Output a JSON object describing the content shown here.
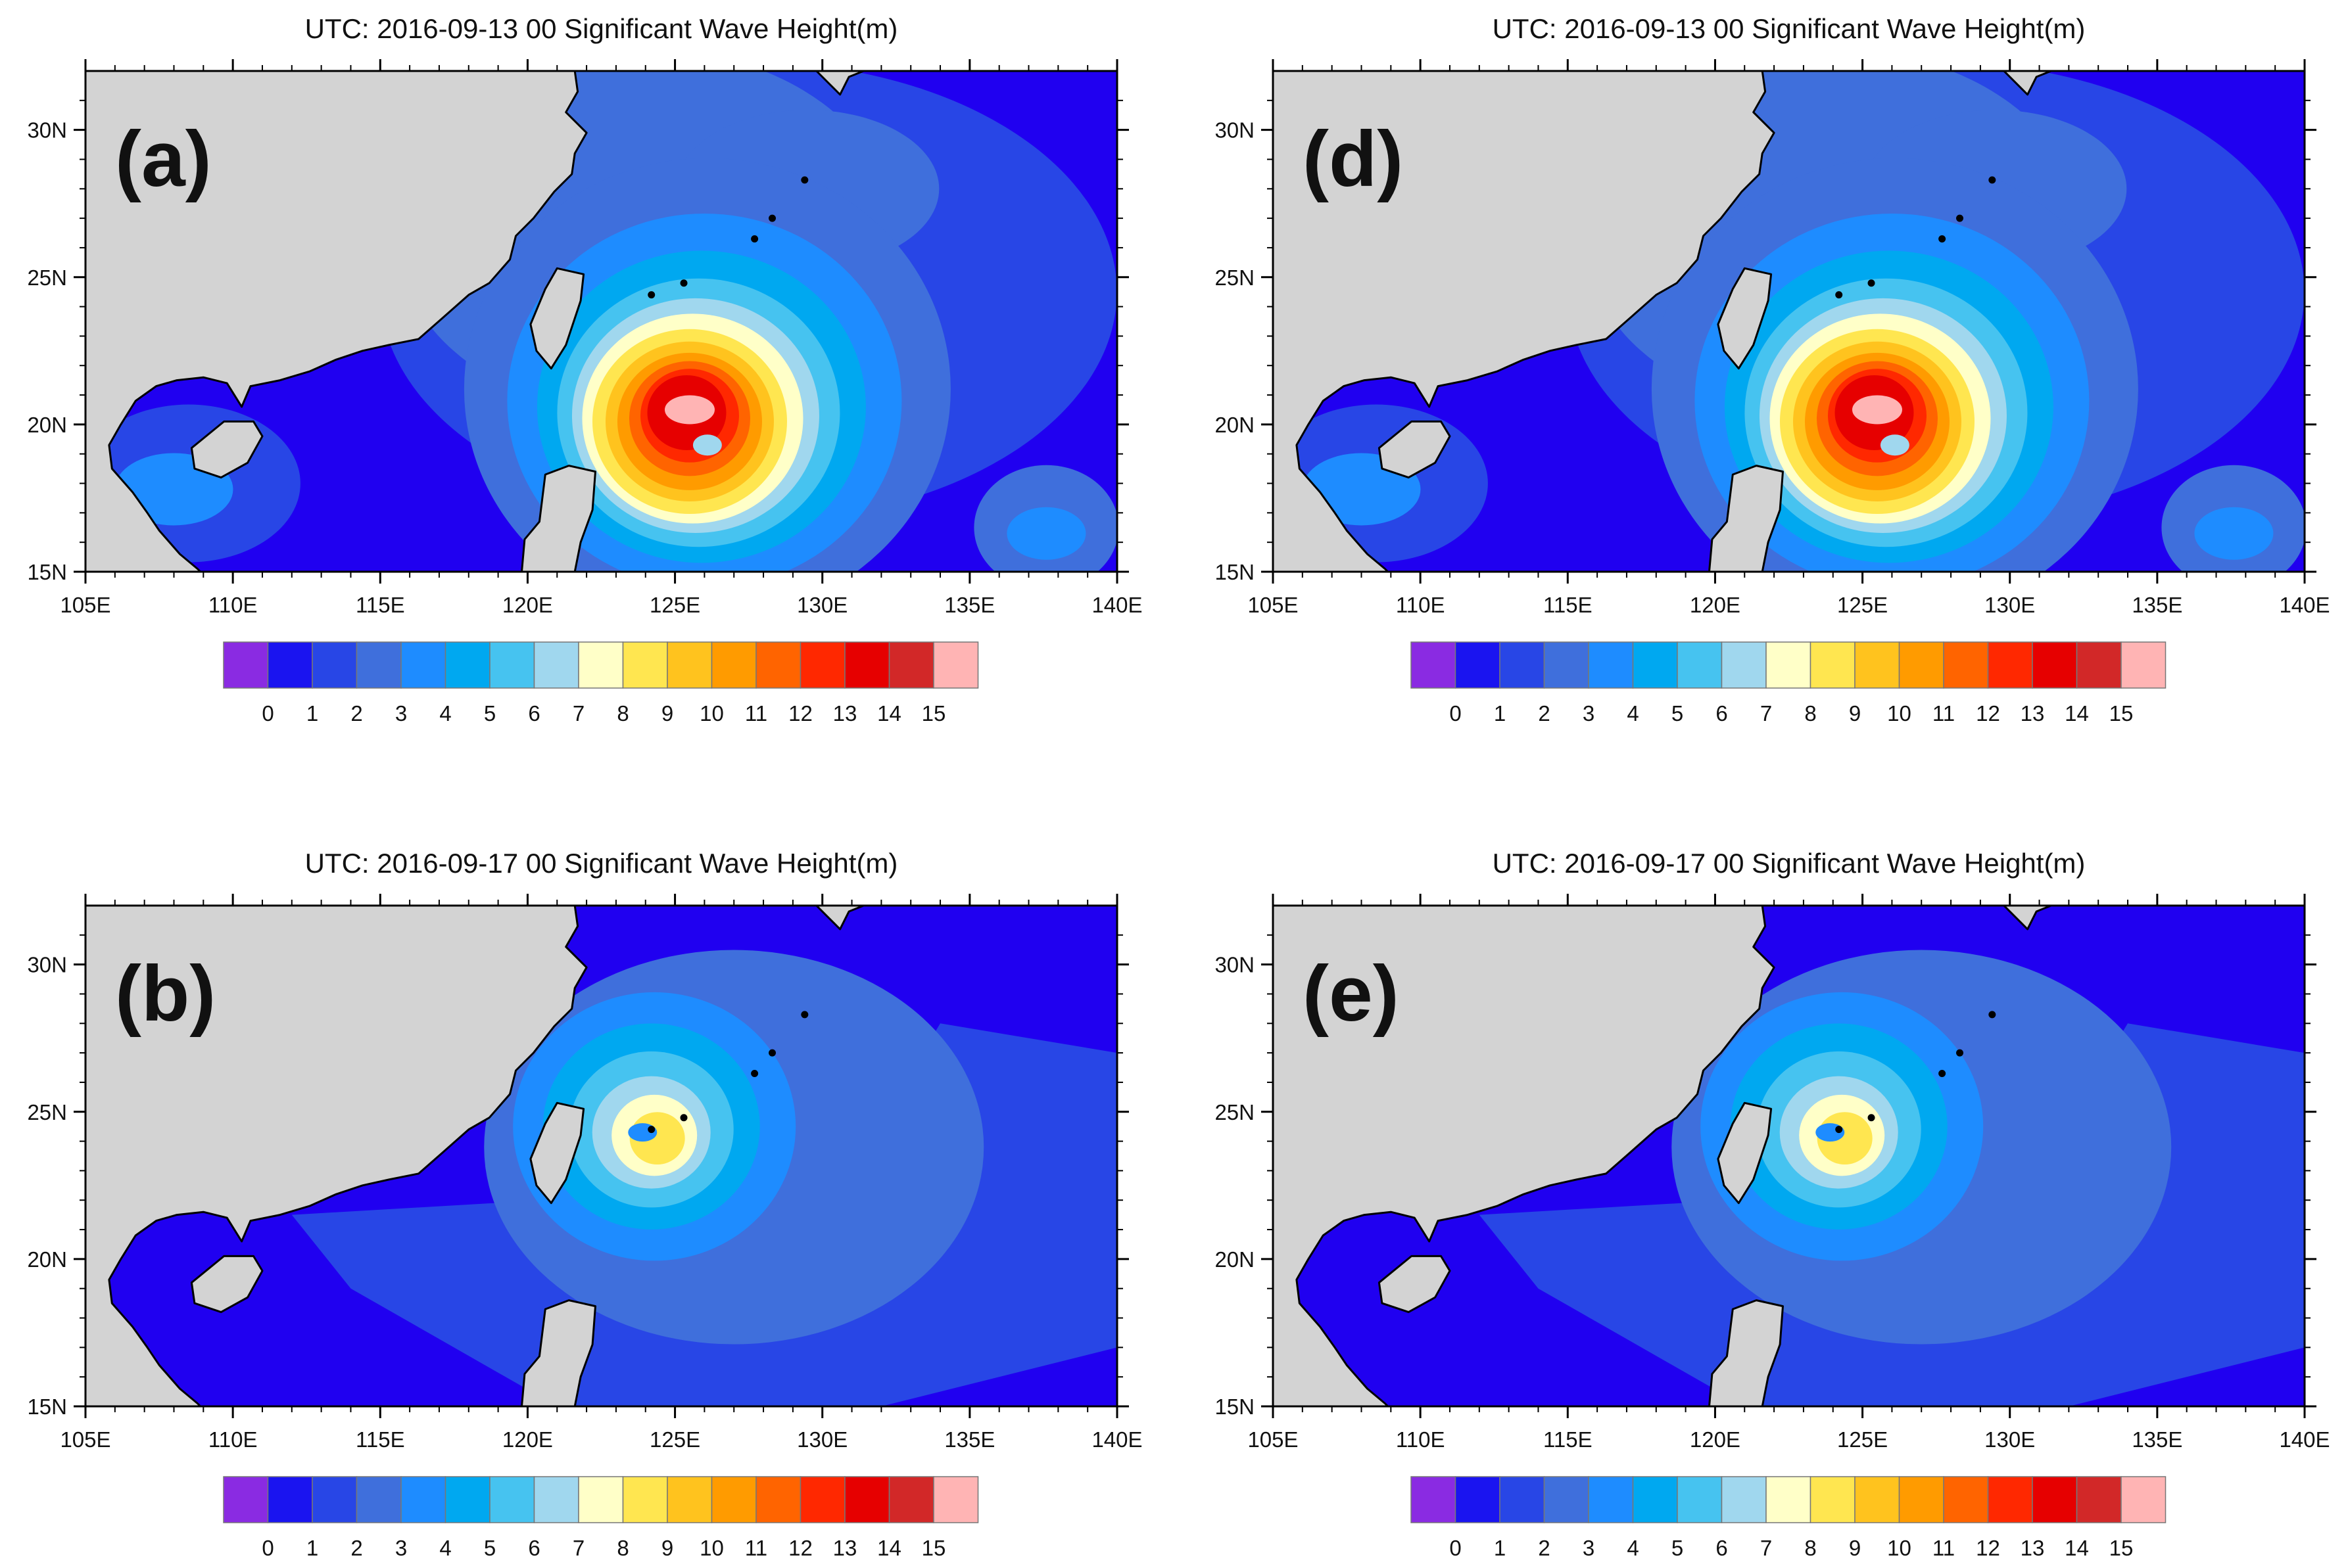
{
  "figure": {
    "title_prefix": "UTC:",
    "variable": "Significant Wave Height(m)"
  },
  "panels": [
    {
      "id": "a",
      "label": "(a)",
      "time": "2016-09-13 00"
    },
    {
      "id": "d",
      "label": "(d)",
      "time": "2016-09-13 00"
    },
    {
      "id": "b",
      "label": "(b)",
      "time": "2016-09-17 00"
    },
    {
      "id": "e",
      "label": "(e)",
      "time": "2016-09-17 00"
    }
  ],
  "axes": {
    "lon_ticks": [
      "105E",
      "110E",
      "115E",
      "120E",
      "125E",
      "130E",
      "135E",
      "140E"
    ],
    "lat_ticks": [
      "15N",
      "20N",
      "25N",
      "30N"
    ],
    "lon_range": [
      105,
      140
    ],
    "lat_range": [
      15,
      32
    ]
  },
  "colorbar": {
    "labels": [
      "0",
      "1",
      "2",
      "3",
      "4",
      "5",
      "6",
      "7",
      "8",
      "9",
      "10",
      "11",
      "12",
      "13",
      "14",
      "15"
    ],
    "colors": [
      "#8a2be2",
      "#1a14f0",
      "#2846e6",
      "#3f6fdc",
      "#1e8cff",
      "#00a8f0",
      "#46c3f0",
      "#a0d7ee",
      "#ffffc8",
      "#ffe650",
      "#ffc31e",
      "#ff9b00",
      "#ff6400",
      "#ff2800",
      "#e60000",
      "#d22828",
      "#ffb4b4"
    ]
  },
  "colors": {
    "land": "#d3d3d3",
    "ocean": "#2000f0",
    "coast": "#000000"
  }
}
